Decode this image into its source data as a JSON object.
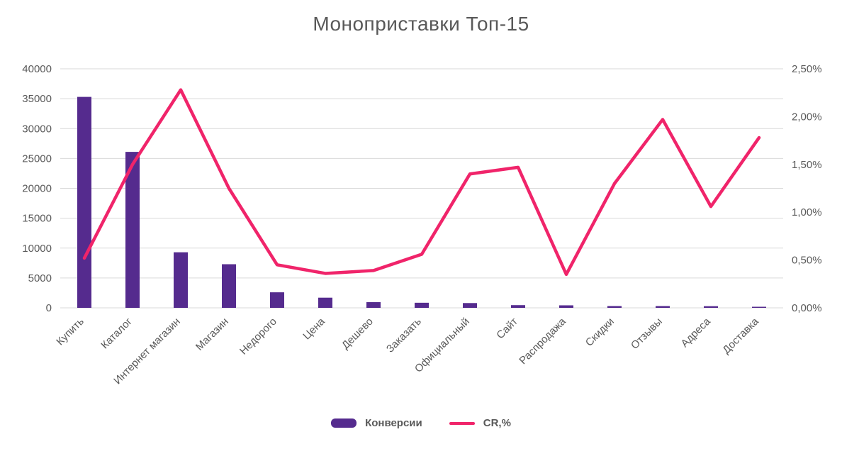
{
  "title": "Моноприставки Топ-15",
  "legend": {
    "bars_label": "Конверсии",
    "line_label": "CR,%"
  },
  "colors": {
    "bar": "#552b8e",
    "line": "#f0246a",
    "grid": "#d9d9d9",
    "axis_text": "#595959"
  },
  "chart_data": {
    "type": "bar",
    "subtype": "combo-bar-line",
    "title": "Моноприставки Топ-15",
    "categories": [
      "Купить",
      "Каталог",
      "Интернет магазин",
      "Магазин",
      "Недорого",
      "Цена",
      "Дешево",
      "Заказать",
      "Официальный",
      "Сайт",
      "Распродажа",
      "Скидки",
      "Отзывы",
      "Адреса",
      "Доставка"
    ],
    "series": [
      {
        "name": "Конверсии",
        "type": "bar",
        "axis": "left",
        "values": [
          35300,
          26100,
          9300,
          7300,
          2600,
          1700,
          950,
          850,
          800,
          450,
          420,
          300,
          300,
          280,
          180
        ]
      },
      {
        "name": "CR,%",
        "type": "line",
        "axis": "right",
        "values": [
          0.52,
          1.5,
          2.28,
          1.25,
          0.45,
          0.36,
          0.39,
          0.56,
          1.4,
          1.47,
          0.35,
          1.3,
          1.97,
          1.06,
          1.78
        ]
      }
    ],
    "left_axis": {
      "min": 0,
      "max": 40000,
      "step": 5000,
      "ticks": [
        "0",
        "5000",
        "10000",
        "15000",
        "20000",
        "25000",
        "30000",
        "35000",
        "40000"
      ]
    },
    "right_axis": {
      "min": 0,
      "max": 2.5,
      "step": 0.5,
      "ticks": [
        "0,00%",
        "0,50%",
        "1,00%",
        "1,50%",
        "2,00%",
        "2,50%"
      ]
    },
    "grid": true,
    "legend_position": "bottom"
  }
}
